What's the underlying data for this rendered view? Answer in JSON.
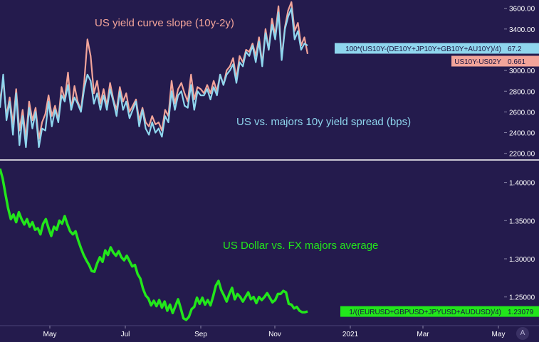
{
  "colors": {
    "background": "#241b4d",
    "slope": "#f2a49a",
    "spread": "#8fd6ee",
    "dollar": "#22e61b",
    "divider": "#ffffff",
    "axis_text": "#ffffff"
  },
  "footer": {
    "scale_button_label": "A"
  },
  "chart_data": [
    {
      "type": "line",
      "title": "",
      "annotations": [
        "US yield curve slope (10y-2y)",
        "US vs. majors 10y yield spread (bps)"
      ],
      "xlabel": "",
      "ylabel": "",
      "x_ticks": [
        "May",
        "Jul",
        "Sep",
        "Nov",
        "2021",
        "Mar",
        "May"
      ],
      "y_ticks": [
        "2200.00",
        "2400.00",
        "2600.00",
        "2800.00",
        "3000.00",
        "3200.00",
        "3400.00",
        "3600.00"
      ],
      "ylim": [
        2150,
        3680
      ],
      "series": [
        {
          "name": "US10Y-US02Y",
          "color": "#f2a49a",
          "last_value_label": "0.661",
          "values": [
            2720,
            2900,
            2560,
            2740,
            2480,
            2820,
            2420,
            2620,
            2340,
            2700,
            2520,
            2640,
            2340,
            2500,
            2580,
            2760,
            2560,
            2660,
            2520,
            2840,
            2720,
            2980,
            2620,
            2850,
            2700,
            2620,
            2880,
            3300,
            3140,
            2780,
            2900,
            2680,
            2820,
            2660,
            2880,
            2720,
            2620,
            2840,
            2700,
            2780,
            2600,
            2660,
            2720,
            2520,
            2640,
            2500,
            2460,
            2560,
            2480,
            2500,
            2420,
            2620,
            2560,
            2900,
            2680,
            2820,
            2880,
            2780,
            2700,
            2960,
            2720,
            2840,
            2820,
            2780,
            2860,
            2780,
            2900,
            2800,
            2960,
            2860,
            3000,
            3040,
            3120,
            2920,
            3140,
            3080,
            3200,
            3180,
            3260,
            3140,
            3320,
            3060,
            3400,
            3200,
            3500,
            3340,
            3620,
            3120,
            3420,
            3580,
            3660,
            3380,
            3460,
            3240,
            3320,
            3160
          ]
        },
        {
          "name": "100*(US10Y-(DE10Y+JP10Y+GB10Y+AU10Y)/4)",
          "color": "#8fd6ee",
          "last_value_label": "67.2",
          "values": [
            2640,
            2960,
            2520,
            2700,
            2380,
            2780,
            2280,
            2560,
            2260,
            2640,
            2440,
            2600,
            2260,
            2440,
            2420,
            2700,
            2460,
            2620,
            2500,
            2760,
            2700,
            2860,
            2620,
            2740,
            2680,
            2600,
            2820,
            2960,
            2900,
            2680,
            2780,
            2620,
            2760,
            2620,
            2820,
            2700,
            2560,
            2800,
            2620,
            2700,
            2540,
            2620,
            2700,
            2460,
            2620,
            2440,
            2380,
            2500,
            2400,
            2440,
            2360,
            2560,
            2500,
            2800,
            2620,
            2760,
            2800,
            2660,
            2640,
            2860,
            2620,
            2800,
            2760,
            2760,
            2820,
            2720,
            2840,
            2760,
            2960,
            2860,
            2960,
            3000,
            3060,
            2880,
            3080,
            3040,
            3180,
            3140,
            3240,
            3080,
            3280,
            3040,
            3360,
            3200,
            3440,
            3300,
            3560,
            3100,
            3400,
            3520,
            3600,
            3300,
            3380,
            3200,
            3260,
            3240
          ]
        }
      ]
    },
    {
      "type": "line",
      "title": "",
      "annotations": [
        "US Dollar vs. FX majors average"
      ],
      "xlabel": "",
      "ylabel": "",
      "x_ticks": [
        "May",
        "Jul",
        "Sep",
        "Nov",
        "2021",
        "Mar",
        "May"
      ],
      "y_ticks": [
        "1.25000",
        "1.30000",
        "1.35000",
        "1.40000"
      ],
      "ylim": [
        1.2143,
        1.4276
      ],
      "series": [
        {
          "name": "1/((EURUSD+GBPUSD+JPYUSD+AUDUSD)/4)",
          "color": "#22e61b",
          "last_value_label": "1.23079",
          "values": [
            1.418,
            1.405,
            1.385,
            1.366,
            1.352,
            1.358,
            1.348,
            1.361,
            1.352,
            1.345,
            1.352,
            1.342,
            1.348,
            1.338,
            1.34,
            1.332,
            1.346,
            1.352,
            1.34,
            1.33,
            1.342,
            1.338,
            1.35,
            1.346,
            1.356,
            1.345,
            1.336,
            1.332,
            1.336,
            1.324,
            1.314,
            1.305,
            1.298,
            1.292,
            1.284,
            1.283,
            1.294,
            1.302,
            1.296,
            1.311,
            1.305,
            1.315,
            1.308,
            1.304,
            1.31,
            1.302,
            1.298,
            1.304,
            1.297,
            1.29,
            1.292,
            1.28,
            1.274,
            1.261,
            1.252,
            1.248,
            1.239,
            1.245,
            1.238,
            1.246,
            1.236,
            1.244,
            1.232,
            1.24,
            1.229,
            1.238,
            1.247,
            1.235,
            1.222,
            1.22,
            1.224,
            1.234,
            1.237,
            1.249,
            1.241,
            1.249,
            1.24,
            1.246,
            1.239,
            1.251,
            1.265,
            1.271,
            1.259,
            1.252,
            1.244,
            1.254,
            1.262,
            1.247,
            1.254,
            1.25,
            1.244,
            1.25,
            1.256,
            1.247,
            1.25,
            1.242,
            1.25,
            1.246,
            1.25,
            1.255,
            1.249,
            1.243,
            1.246,
            1.254,
            1.254,
            1.258,
            1.256,
            1.241,
            1.24,
            1.235,
            1.237,
            1.232,
            1.23,
            1.23,
            1.231
          ]
        }
      ]
    }
  ]
}
